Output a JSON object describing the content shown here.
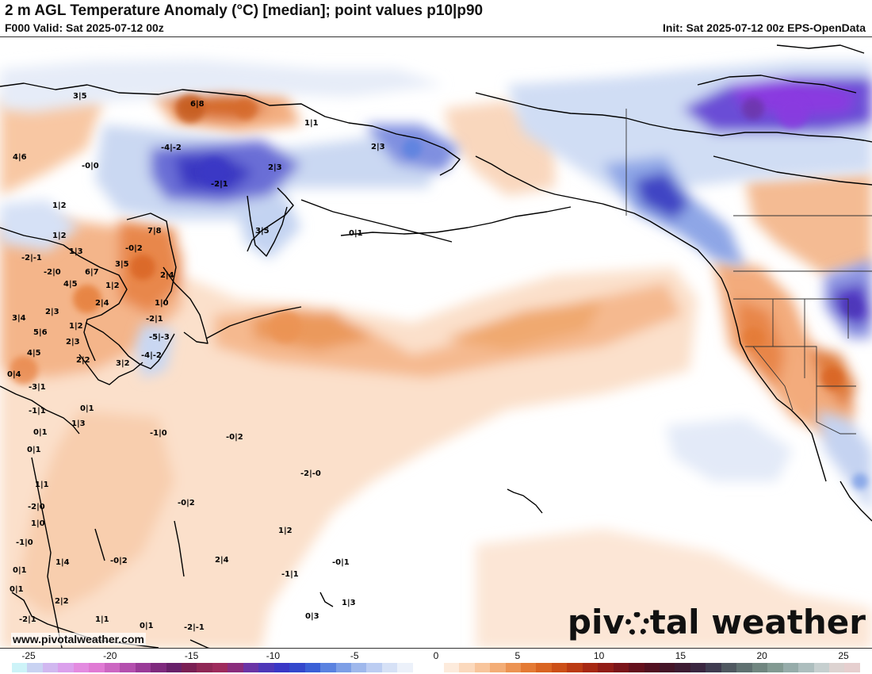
{
  "header": {
    "title": "2 m AGL Temperature Anomaly (°C) [median]; point values p10|p90",
    "valid": "F000 Valid: Sat 2025-07-12 00z",
    "init": "Init: Sat 2025-07-12 00z EPS-OpenData"
  },
  "branding": {
    "logo_text_1": "piv",
    "logo_text_2": "tal weather",
    "url": "www.pivotalweather.com"
  },
  "point_values": [
    "3|5",
    "6|8",
    "1|1",
    "4|6",
    "-4|-2",
    "-0|0",
    "2|3",
    "2|3",
    "-2|1",
    "1|2",
    "3|5",
    "0|1",
    "1|2",
    "7|8",
    "-0|2",
    "1|3",
    "3|5",
    "-2|-1",
    "-2|0",
    "6|7",
    "4|5",
    "1|2",
    "2|4",
    "2|4",
    "1|0",
    "3|4",
    "2|3",
    "-2|1",
    "5|6",
    "1|2",
    "-5|-3",
    "2|3",
    "4|5",
    "-4|-2",
    "2|2",
    "3|2",
    "0|4",
    "-3|1",
    "-1|1",
    "0|1",
    "1|3",
    "-1|0",
    "-0|2",
    "0|1",
    "0|1",
    "-2|-0",
    "1|1",
    "-2|0",
    "-0|2",
    "1|0",
    "-1|0",
    "1|2",
    "-0|2",
    "2|4",
    "-1|1",
    "-0|1",
    "0|1",
    "1|4",
    "0|1",
    "2|2",
    "1|3",
    "-2|1",
    "0|3",
    "1|1",
    "0|1",
    "-2|-1"
  ],
  "colorbar": {
    "ticks": [
      "-25",
      "-20",
      "-15",
      "-10",
      "-5",
      "0",
      "5",
      "10",
      "15",
      "20",
      "25"
    ],
    "colors": [
      "#cdf3f8",
      "#c9d3f2",
      "#d1b8f0",
      "#dba0ec",
      "#e38be0",
      "#e07ad4",
      "#cc66c2",
      "#b44fae",
      "#9a3a98",
      "#7f2a7e",
      "#68206a",
      "#7a1f54",
      "#8f2755",
      "#9e2b5c",
      "#8a2c7c",
      "#6a34a6",
      "#4e37b8",
      "#3a37c6",
      "#3347cc",
      "#3a5fd6",
      "#5a82e0",
      "#7d9fe6",
      "#9fb8ec",
      "#bccdf2",
      "#d6e1f6",
      "#ecf1fa",
      "#ffffff",
      "#ffffff",
      "#fdebdc",
      "#fbd9bd",
      "#f8c59c",
      "#f3ad76",
      "#ec9352",
      "#e47a34",
      "#d96421",
      "#cc4f17",
      "#bb3a12",
      "#a72812",
      "#911c16",
      "#7a1419",
      "#64101c",
      "#521020",
      "#441427",
      "#3d1b32",
      "#3a2640",
      "#3f3b50",
      "#4f5860",
      "#5f7070",
      "#708680",
      "#829a92",
      "#96acaa",
      "#adbebe",
      "#c6cfcf",
      "#ddd3d1",
      "#e6cfcf"
    ]
  }
}
